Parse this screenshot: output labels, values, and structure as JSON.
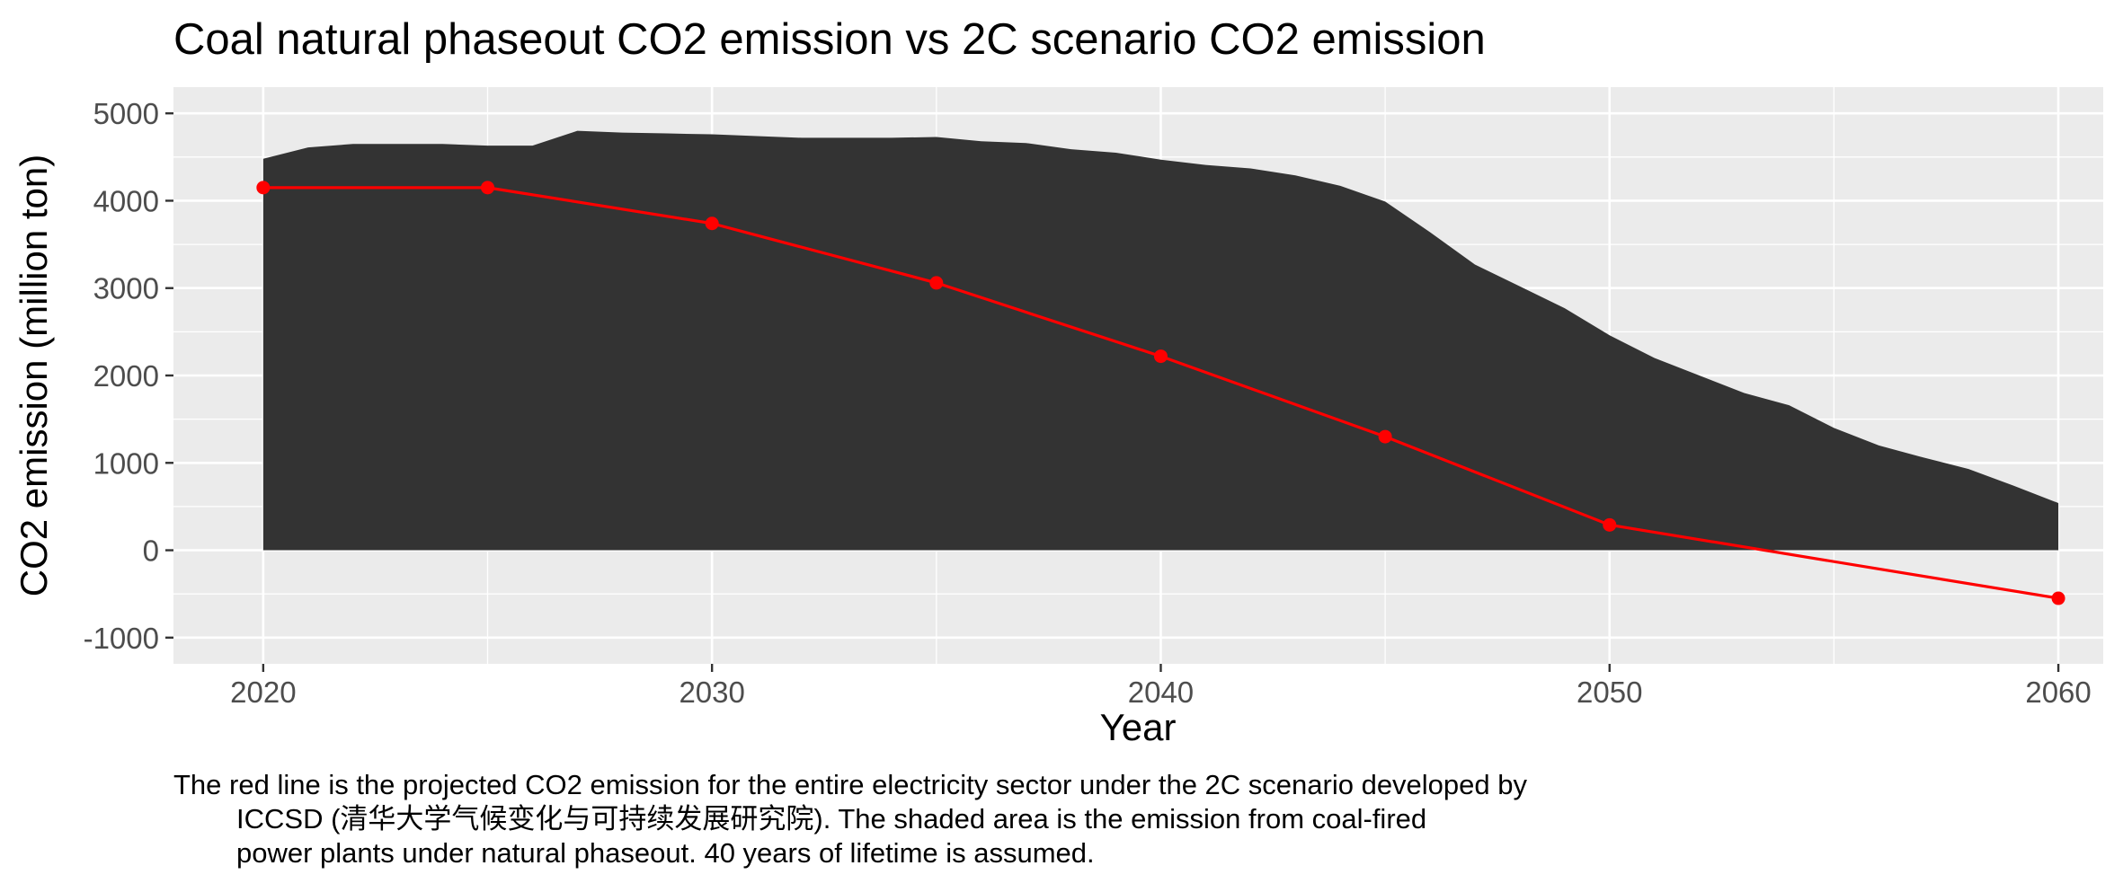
{
  "chart_data": {
    "type": "area",
    "title": "Coal natural phaseout CO2 emission vs 2C scenario CO2 emission",
    "xlabel": "Year",
    "ylabel": "CO2 emission (million ton)",
    "xlim": [
      2018,
      2061
    ],
    "ylim": [
      -1300,
      5300
    ],
    "xticks": [
      2020,
      2030,
      2040,
      2050,
      2060
    ],
    "yticks": [
      -1000,
      0,
      1000,
      2000,
      3000,
      4000,
      5000
    ],
    "grid": true,
    "legend": "none",
    "series": [
      {
        "type": "area",
        "color": "#333333",
        "x": [
          2020,
          2021,
          2022,
          2023,
          2024,
          2025,
          2026,
          2027,
          2028,
          2029,
          2030,
          2031,
          2032,
          2033,
          2034,
          2035,
          2036,
          2037,
          2038,
          2039,
          2040,
          2041,
          2042,
          2043,
          2044,
          2045,
          2046,
          2047,
          2048,
          2049,
          2050,
          2051,
          2052,
          2053,
          2054,
          2055,
          2056,
          2057,
          2058,
          2059,
          2060
        ],
        "values": [
          4480,
          4610,
          4650,
          4650,
          4650,
          4630,
          4630,
          4800,
          4780,
          4770,
          4760,
          4740,
          4720,
          4720,
          4720,
          4730,
          4680,
          4660,
          4590,
          4550,
          4470,
          4410,
          4370,
          4290,
          4170,
          3990,
          3640,
          3270,
          3020,
          2770,
          2460,
          2200,
          2000,
          1800,
          1660,
          1400,
          1200,
          1060,
          930,
          740,
          540
        ]
      },
      {
        "type": "line",
        "color": "#ff0000",
        "x": [
          2020,
          2025,
          2030,
          2035,
          2040,
          2045,
          2050,
          2060
        ],
        "values": [
          4150,
          4150,
          3740,
          3060,
          2220,
          1300,
          290,
          -550
        ]
      }
    ]
  },
  "caption": {
    "lines": [
      "The red line is the projected CO2 emission for the entire electricity sector under the 2C scenario developed by",
      "ICCSD (清华大学气候变化与可持续发展研究院). The shaded area is the emission from coal-fired",
      "power plants under natural phaseout. 40 years of lifetime is assumed."
    ]
  }
}
